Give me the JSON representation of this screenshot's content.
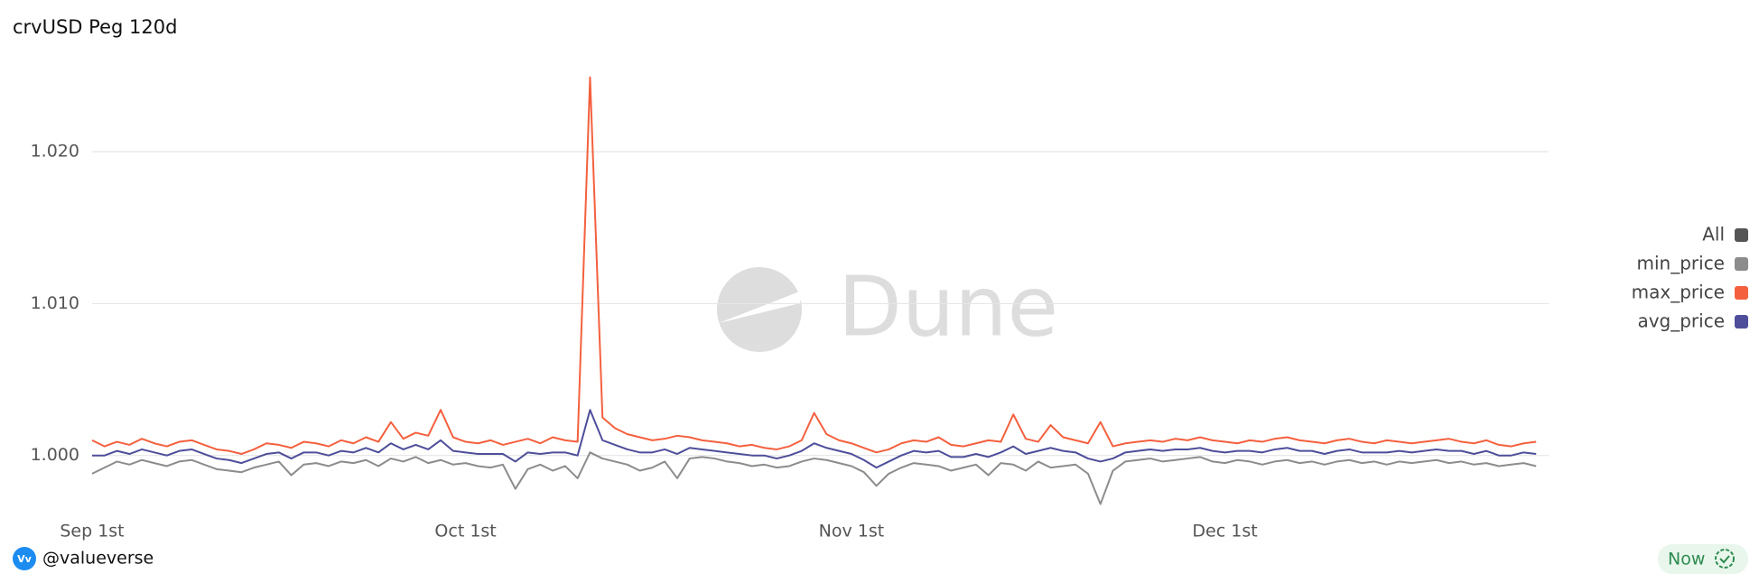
{
  "chart_data": {
    "type": "line",
    "title": "crvUSD Peg 120d",
    "x": [
      0,
      1,
      2,
      3,
      4,
      5,
      6,
      7,
      8,
      9,
      10,
      11,
      12,
      13,
      14,
      15,
      16,
      17,
      18,
      19,
      20,
      21,
      22,
      23,
      24,
      25,
      26,
      27,
      28,
      29,
      30,
      31,
      32,
      33,
      34,
      35,
      36,
      37,
      38,
      39,
      40,
      41,
      42,
      43,
      44,
      45,
      46,
      47,
      48,
      49,
      50,
      51,
      52,
      53,
      54,
      55,
      56,
      57,
      58,
      59,
      60,
      61,
      62,
      63,
      64,
      65,
      66,
      67,
      68,
      69,
      70,
      71,
      72,
      73,
      74,
      75,
      76,
      77,
      78,
      79,
      80,
      81,
      82,
      83,
      84,
      85,
      86,
      87,
      88,
      89,
      90,
      91,
      92,
      93,
      94,
      95,
      96,
      97,
      98,
      99,
      100,
      101,
      102,
      103,
      104,
      105,
      106,
      107,
      108,
      109,
      110,
      111,
      112,
      113,
      114,
      115,
      116
    ],
    "xlim": [
      0,
      117
    ],
    "xticks": [
      {
        "value": 0,
        "label": "Sep 1st"
      },
      {
        "value": 30,
        "label": "Oct 1st"
      },
      {
        "value": 61,
        "label": "Nov 1st"
      },
      {
        "value": 91,
        "label": "Dec 1st"
      }
    ],
    "ylim": [
      0.996,
      1.025
    ],
    "yticks": [
      {
        "value": 1,
        "label": "1.000"
      },
      {
        "value": 1.01,
        "label": "1.010"
      },
      {
        "value": 1.02,
        "label": "1.020"
      }
    ],
    "grid": true,
    "legend_position": "right",
    "legend_all": {
      "name": "All",
      "color": "#555555"
    },
    "series": [
      {
        "name": "min_price",
        "color": "#8c8c8c",
        "values": [
          0.9988,
          0.9992,
          0.9996,
          0.9994,
          0.9997,
          0.9995,
          0.9993,
          0.9996,
          0.9997,
          0.9994,
          0.9991,
          0.999,
          0.9989,
          0.9992,
          0.9994,
          0.9996,
          0.9987,
          0.9994,
          0.9995,
          0.9993,
          0.9996,
          0.9995,
          0.9997,
          0.9993,
          0.9998,
          0.9996,
          0.9999,
          0.9995,
          0.9997,
          0.9994,
          0.9995,
          0.9993,
          0.9992,
          0.9994,
          0.9978,
          0.9991,
          0.9994,
          0.999,
          0.9993,
          0.9985,
          1.0002,
          0.9998,
          0.9996,
          0.9994,
          0.999,
          0.9992,
          0.9996,
          0.9985,
          0.9998,
          0.9999,
          0.9998,
          0.9996,
          0.9995,
          0.9993,
          0.9994,
          0.9992,
          0.9993,
          0.9996,
          0.9998,
          0.9997,
          0.9995,
          0.9993,
          0.9989,
          0.998,
          0.9988,
          0.9992,
          0.9995,
          0.9994,
          0.9993,
          0.999,
          0.9992,
          0.9994,
          0.9987,
          0.9995,
          0.9994,
          0.999,
          0.9996,
          0.9992,
          0.9993,
          0.9994,
          0.9988,
          0.9968,
          0.999,
          0.9996,
          0.9997,
          0.9998,
          0.9996,
          0.9997,
          0.9998,
          0.9999,
          0.9996,
          0.9995,
          0.9997,
          0.9996,
          0.9994,
          0.9996,
          0.9997,
          0.9995,
          0.9996,
          0.9994,
          0.9996,
          0.9997,
          0.9995,
          0.9996,
          0.9994,
          0.9996,
          0.9995,
          0.9996,
          0.9997,
          0.9995,
          0.9996,
          0.9994,
          0.9995,
          0.9993,
          0.9994,
          0.9995,
          0.9993
        ]
      },
      {
        "name": "max_price",
        "color": "#f4603e",
        "values": [
          1.001,
          1.0006,
          1.0009,
          1.0007,
          1.0011,
          1.0008,
          1.0006,
          1.0009,
          1.001,
          1.0007,
          1.0004,
          1.0003,
          1.0001,
          1.0004,
          1.0008,
          1.0007,
          1.0005,
          1.0009,
          1.0008,
          1.0006,
          1.001,
          1.0008,
          1.0012,
          1.0009,
          1.0022,
          1.0011,
          1.0015,
          1.0013,
          1.003,
          1.0012,
          1.0009,
          1.0008,
          1.001,
          1.0007,
          1.0009,
          1.0011,
          1.0008,
          1.0012,
          1.001,
          1.0009,
          1.0249,
          1.0025,
          1.0018,
          1.0014,
          1.0012,
          1.001,
          1.0011,
          1.0013,
          1.0012,
          1.001,
          1.0009,
          1.0008,
          1.0006,
          1.0007,
          1.0005,
          1.0004,
          1.0006,
          1.001,
          1.0028,
          1.0014,
          1.001,
          1.0008,
          1.0005,
          1.0002,
          1.0004,
          1.0008,
          1.001,
          1.0009,
          1.0012,
          1.0007,
          1.0006,
          1.0008,
          1.001,
          1.0009,
          1.0027,
          1.0011,
          1.0009,
          1.002,
          1.0012,
          1.001,
          1.0008,
          1.0022,
          1.0006,
          1.0008,
          1.0009,
          1.001,
          1.0009,
          1.0011,
          1.001,
          1.0012,
          1.001,
          1.0009,
          1.0008,
          1.001,
          1.0009,
          1.0011,
          1.0012,
          1.001,
          1.0009,
          1.0008,
          1.001,
          1.0011,
          1.0009,
          1.0008,
          1.001,
          1.0009,
          1.0008,
          1.0009,
          1.001,
          1.0011,
          1.0009,
          1.0008,
          1.001,
          1.0007,
          1.0006,
          1.0008,
          1.0009
        ]
      },
      {
        "name": "avg_price",
        "color": "#4e4e9a",
        "values": [
          1.0,
          1.0,
          1.0003,
          1.0001,
          1.0004,
          1.0002,
          1.0,
          1.0003,
          1.0004,
          1.0001,
          0.9998,
          0.9997,
          0.9995,
          0.9998,
          1.0001,
          1.0002,
          0.9998,
          1.0002,
          1.0002,
          1.0,
          1.0003,
          1.0002,
          1.0005,
          1.0002,
          1.0008,
          1.0004,
          1.0007,
          1.0004,
          1.001,
          1.0003,
          1.0002,
          1.0001,
          1.0001,
          1.0001,
          0.9996,
          1.0002,
          1.0001,
          1.0002,
          1.0002,
          1.0,
          1.003,
          1.001,
          1.0007,
          1.0004,
          1.0002,
          1.0002,
          1.0004,
          1.0001,
          1.0005,
          1.0004,
          1.0003,
          1.0002,
          1.0001,
          1.0,
          1.0,
          0.9998,
          1.0,
          1.0003,
          1.0008,
          1.0005,
          1.0003,
          1.0001,
          0.9997,
          0.9992,
          0.9996,
          1.0,
          1.0003,
          1.0002,
          1.0003,
          0.9999,
          0.9999,
          1.0001,
          0.9999,
          1.0002,
          1.0006,
          1.0001,
          1.0003,
          1.0005,
          1.0003,
          1.0002,
          0.9998,
          0.9996,
          0.9998,
          1.0002,
          1.0003,
          1.0004,
          1.0003,
          1.0004,
          1.0004,
          1.0005,
          1.0003,
          1.0002,
          1.0003,
          1.0003,
          1.0002,
          1.0004,
          1.0005,
          1.0003,
          1.0003,
          1.0001,
          1.0003,
          1.0004,
          1.0002,
          1.0002,
          1.0002,
          1.0003,
          1.0002,
          1.0003,
          1.0004,
          1.0003,
          1.0003,
          1.0001,
          1.0003,
          1.0,
          1.0,
          1.0002,
          1.0001
        ]
      }
    ]
  },
  "watermark": "Dune",
  "footer": {
    "author": "@valueverse",
    "avatar": "Vv",
    "status": "Now"
  }
}
